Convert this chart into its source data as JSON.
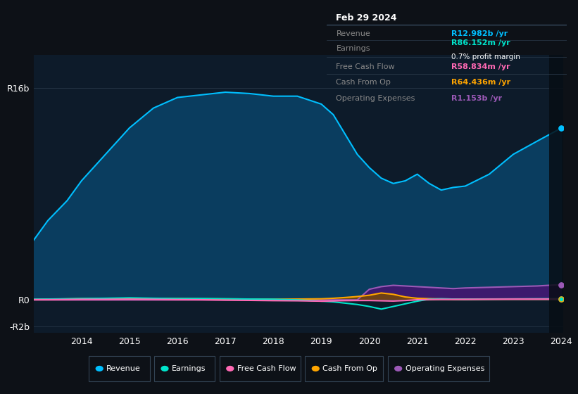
{
  "bg_color": "#0d1117",
  "plot_bg_color": "#0d1b2a",
  "grid_color": "#1e3a5f",
  "years": [
    2013.0,
    2013.3,
    2013.7,
    2014.0,
    2014.5,
    2015.0,
    2015.5,
    2016.0,
    2016.5,
    2017.0,
    2017.5,
    2018.0,
    2018.5,
    2019.0,
    2019.25,
    2019.5,
    2019.75,
    2020.0,
    2020.25,
    2020.5,
    2020.75,
    2021.0,
    2021.25,
    2021.5,
    2021.75,
    2022.0,
    2022.5,
    2023.0,
    2023.5,
    2024.0
  ],
  "revenue": [
    4.5,
    6.0,
    7.5,
    9.0,
    11.0,
    13.0,
    14.5,
    15.3,
    15.5,
    15.7,
    15.6,
    15.4,
    15.4,
    14.8,
    14.0,
    12.5,
    11.0,
    10.0,
    9.2,
    8.8,
    9.0,
    9.5,
    8.8,
    8.3,
    8.5,
    8.6,
    9.5,
    11.0,
    12.0,
    12.982
  ],
  "earnings": [
    0.05,
    0.06,
    0.08,
    0.1,
    0.12,
    0.15,
    0.12,
    0.1,
    0.1,
    0.08,
    0.06,
    0.05,
    0.0,
    -0.1,
    -0.15,
    -0.25,
    -0.35,
    -0.5,
    -0.7,
    -0.5,
    -0.3,
    -0.1,
    0.05,
    0.08,
    0.06,
    0.05,
    0.06,
    0.07,
    0.08,
    0.086
  ],
  "free_cash_flow": [
    0.02,
    0.02,
    0.03,
    0.04,
    0.04,
    0.05,
    0.04,
    0.02,
    0.01,
    -0.02,
    -0.04,
    -0.06,
    -0.07,
    -0.1,
    -0.08,
    -0.06,
    -0.05,
    -0.05,
    -0.07,
    -0.09,
    -0.05,
    0.01,
    0.03,
    0.04,
    0.04,
    0.04,
    0.05,
    0.058,
    0.059,
    0.059
  ],
  "cash_from_op": [
    0.03,
    0.05,
    0.07,
    0.09,
    0.1,
    0.12,
    0.11,
    0.1,
    0.08,
    0.07,
    0.06,
    0.05,
    0.06,
    0.08,
    0.12,
    0.18,
    0.25,
    0.35,
    0.52,
    0.42,
    0.22,
    0.12,
    0.09,
    0.07,
    0.06,
    0.06,
    0.065,
    0.065,
    0.064,
    0.064
  ],
  "operating_expenses": [
    0.0,
    0.0,
    0.0,
    0.0,
    0.0,
    0.0,
    0.0,
    0.0,
    0.0,
    0.0,
    0.0,
    0.0,
    0.0,
    0.0,
    0.0,
    0.0,
    0.0,
    0.8,
    1.0,
    1.1,
    1.05,
    1.0,
    0.95,
    0.9,
    0.85,
    0.9,
    0.95,
    1.0,
    1.05,
    1.153
  ],
  "revenue_color": "#00bfff",
  "revenue_fill": "#0a3d5f",
  "earnings_color": "#00e5cc",
  "free_cash_flow_color": "#ff69b4",
  "cash_from_op_color": "#ffa500",
  "operating_expenses_color": "#9b59b6",
  "operating_expenses_fill": "#3d1a6e",
  "ylim_min": -2.5,
  "ylim_max": 18.5,
  "ytick_positions": [
    -2,
    0,
    16
  ],
  "ytick_labels": [
    "-R2b",
    "R0",
    "R16b"
  ],
  "xticks": [
    2014,
    2015,
    2016,
    2017,
    2018,
    2019,
    2020,
    2021,
    2022,
    2023,
    2024
  ],
  "info_box": {
    "date": "Feb 29 2024",
    "revenue_label": "Revenue",
    "revenue_val": "R12.982b",
    "revenue_unit": " /yr",
    "revenue_color": "#00bfff",
    "earnings_label": "Earnings",
    "earnings_val": "R86.152m",
    "earnings_unit": " /yr",
    "earnings_color": "#00e5cc",
    "profit_margin": "0.7%",
    "profit_margin_suffix": " profit margin",
    "fcf_label": "Free Cash Flow",
    "fcf_val": "R58.834m",
    "fcf_unit": " /yr",
    "fcf_color": "#ff69b4",
    "cfop_label": "Cash From Op",
    "cfop_val": "R64.436m",
    "cfop_unit": " /yr",
    "cfop_color": "#ffa500",
    "opex_label": "Operating Expenses",
    "opex_val": "R1.153b",
    "opex_unit": " /yr",
    "opex_color": "#9b59b6"
  },
  "legend_items": [
    "Revenue",
    "Earnings",
    "Free Cash Flow",
    "Cash From Op",
    "Operating Expenses"
  ],
  "legend_colors": [
    "#00bfff",
    "#00e5cc",
    "#ff69b4",
    "#ffa500",
    "#9b59b6"
  ]
}
